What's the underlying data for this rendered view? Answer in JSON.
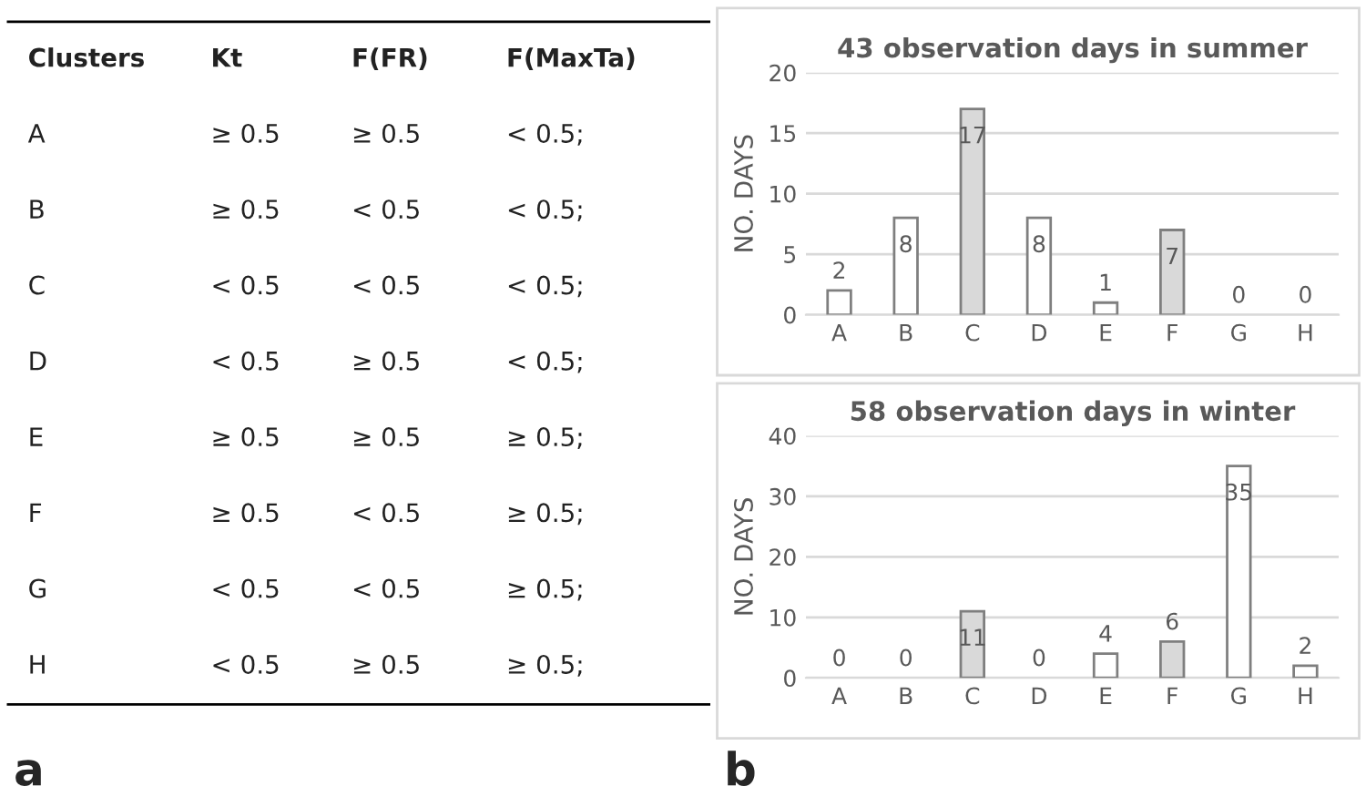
{
  "chart_data": [
    {
      "type": "other",
      "title": "a",
      "annotations": [
        "Clusters",
        "Kt",
        "F(FR)",
        "F(MaxTa)",
        "A",
        "≥ 0.5",
        "≥ 0.5",
        "< 0.5;",
        "B",
        "≥ 0.5",
        "< 0.5",
        "< 0.5;",
        "C",
        "< 0.5",
        "< 0.5",
        "< 0.5;",
        "D",
        "< 0.5",
        "≥ 0.5",
        "< 0.5;",
        "E",
        "≥ 0.5",
        "≥ 0.5",
        "≥ 0.5;",
        "F",
        "≥ 0.5",
        "< 0.5",
        "≥ 0.5;",
        "G",
        "< 0.5",
        "< 0.5",
        "≥ 0.5;",
        "H",
        "< 0.5",
        "≥ 0.5",
        "≥ 0.5;"
      ]
    },
    {
      "type": "bar",
      "title": "43 observation days in summer",
      "ylabel": "NO. DAYS",
      "categories": [
        "A",
        "B",
        "C",
        "D",
        "E",
        "F",
        "G",
        "H"
      ],
      "values": [
        2,
        8,
        17,
        8,
        1,
        7,
        0,
        0
      ],
      "colors": [
        "#ffffff",
        "#ffffff",
        "#d9d9d9",
        "#ffffff",
        "#ffffff",
        "#d9d9d9",
        "#ffffff",
        "#ffffff"
      ],
      "ylim": [
        0,
        20
      ],
      "yticks": [
        0,
        5,
        10,
        15,
        20
      ],
      "grid": "y",
      "data_labels": true,
      "annotations": [
        "b"
      ]
    },
    {
      "type": "bar",
      "title": "58 observation days in winter",
      "ylabel": "NO. DAYS",
      "categories": [
        "A",
        "B",
        "C",
        "D",
        "E",
        "F",
        "G",
        "H"
      ],
      "values": [
        0,
        0,
        11,
        0,
        4,
        6,
        35,
        2
      ],
      "colors": [
        "#ffffff",
        "#ffffff",
        "#d9d9d9",
        "#ffffff",
        "#ffffff",
        "#d9d9d9",
        "#ffffff",
        "#ffffff"
      ],
      "ylim": [
        0,
        40
      ],
      "yticks": [
        0,
        10,
        20,
        30,
        40
      ],
      "grid": "y",
      "data_labels": true
    }
  ]
}
